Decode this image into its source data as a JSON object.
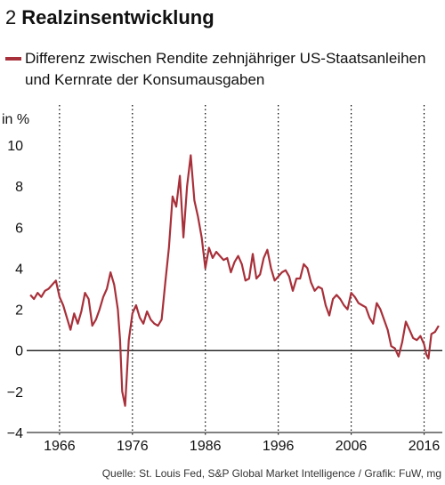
{
  "header": {
    "number": "2",
    "title": "Realzinsentwicklung"
  },
  "source": "Quelle: St. Louis Fed, S&P Global Market Intelligence / Grafik: FuW, mg",
  "colors": {
    "series": "#a8303a",
    "grid": "#000000",
    "zero": "#000000"
  },
  "chart_data": {
    "type": "line",
    "ylabel": "in %",
    "ylim": [
      -4,
      10
    ],
    "xlim": [
      1961.5,
      2018.5
    ],
    "yticks": [
      {
        "v": 10,
        "label": "10"
      },
      {
        "v": 8,
        "label": "8"
      },
      {
        "v": 6,
        "label": "6"
      },
      {
        "v": 4,
        "label": "4"
      },
      {
        "v": 2,
        "label": "2"
      },
      {
        "v": 0,
        "label": "0"
      },
      {
        "v": -2,
        "label": "−2"
      },
      {
        "v": -4,
        "label": "−4"
      }
    ],
    "xticks": [
      {
        "v": 1966,
        "label": "1966"
      },
      {
        "v": 1976,
        "label": "1976"
      },
      {
        "v": 1986,
        "label": "1986"
      },
      {
        "v": 1996,
        "label": "1996"
      },
      {
        "v": 2006,
        "label": "2006"
      },
      {
        "v": 2016,
        "label": "2016"
      }
    ],
    "grid": "vertical dotted",
    "series": [
      {
        "name": "Differenz zwischen Rendite zehnjähriger US-Staatsanleihen und Kernrate der Konsumausgaben",
        "x": [
          1962.0,
          1962.5,
          1963.0,
          1963.5,
          1964.0,
          1964.5,
          1965.0,
          1965.5,
          1966.0,
          1966.5,
          1967.0,
          1967.5,
          1968.0,
          1968.5,
          1969.0,
          1969.5,
          1970.0,
          1970.5,
          1971.0,
          1971.5,
          1972.0,
          1972.5,
          1973.0,
          1973.5,
          1974.0,
          1974.3,
          1974.6,
          1975.0,
          1975.5,
          1976.0,
          1976.5,
          1977.0,
          1977.5,
          1978.0,
          1978.5,
          1979.0,
          1979.5,
          1980.0,
          1980.5,
          1981.0,
          1981.5,
          1982.0,
          1982.5,
          1983.0,
          1983.5,
          1984.0,
          1984.5,
          1985.0,
          1985.5,
          1986.0,
          1986.5,
          1987.0,
          1987.5,
          1988.0,
          1988.5,
          1989.0,
          1989.5,
          1990.0,
          1990.5,
          1991.0,
          1991.5,
          1992.0,
          1992.5,
          1993.0,
          1993.5,
          1994.0,
          1994.5,
          1995.0,
          1995.5,
          1996.0,
          1996.5,
          1997.0,
          1997.5,
          1998.0,
          1998.5,
          1999.0,
          1999.5,
          2000.0,
          2000.5,
          2001.0,
          2001.5,
          2002.0,
          2002.5,
          2003.0,
          2003.5,
          2004.0,
          2004.5,
          2005.0,
          2005.5,
          2006.0,
          2006.5,
          2007.0,
          2007.5,
          2008.0,
          2008.5,
          2009.0,
          2009.5,
          2010.0,
          2010.5,
          2011.0,
          2011.5,
          2012.0,
          2012.5,
          2013.0,
          2013.5,
          2014.0,
          2014.5,
          2015.0,
          2015.5,
          2016.0,
          2016.3,
          2016.6,
          2017.0,
          2017.5,
          2018.0
        ],
        "values": [
          2.7,
          2.5,
          2.8,
          2.6,
          2.9,
          3.0,
          3.2,
          3.4,
          2.6,
          2.2,
          1.6,
          1.0,
          1.8,
          1.3,
          1.9,
          2.8,
          2.5,
          1.2,
          1.5,
          2.0,
          2.6,
          3.0,
          3.8,
          3.2,
          2.0,
          0.5,
          -2.0,
          -2.7,
          0.5,
          1.8,
          2.2,
          1.6,
          1.3,
          1.9,
          1.5,
          1.3,
          1.2,
          1.5,
          3.3,
          5.0,
          7.5,
          7.0,
          8.5,
          5.5,
          8.0,
          9.5,
          7.3,
          6.5,
          5.5,
          4.0,
          5.0,
          4.5,
          4.8,
          4.6,
          4.4,
          4.5,
          3.8,
          4.3,
          4.6,
          4.2,
          3.4,
          3.5,
          4.7,
          3.5,
          3.7,
          4.5,
          4.9,
          4.0,
          3.4,
          3.6,
          3.8,
          3.9,
          3.6,
          2.9,
          3.5,
          3.5,
          4.2,
          4.0,
          3.3,
          2.9,
          3.1,
          3.0,
          2.2,
          1.7,
          2.5,
          2.7,
          2.5,
          2.2,
          2.0,
          2.8,
          2.6,
          2.3,
          2.2,
          2.1,
          1.6,
          1.3,
          2.3,
          2.0,
          1.5,
          1.0,
          0.2,
          0.1,
          -0.3,
          0.4,
          1.4,
          1.0,
          0.6,
          0.5,
          0.7,
          0.3,
          -0.2,
          -0.4,
          0.8,
          0.9,
          1.2
        ]
      }
    ]
  }
}
